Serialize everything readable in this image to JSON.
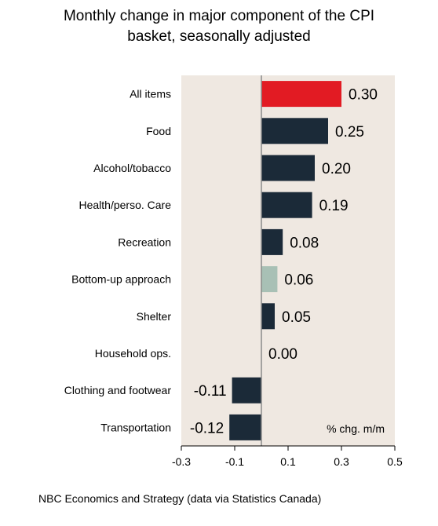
{
  "chart_data": {
    "type": "bar",
    "orientation": "horizontal",
    "title_line1": "Monthly change in major component of the CPI",
    "title_line2": "basket, seasonally adjusted",
    "categories": [
      "All items",
      "Food",
      "Alcohol/tobacco",
      "Health/perso. Care",
      "Recreation",
      "Bottom-up approach",
      "Shelter",
      "Household ops.",
      "Clothing and footwear",
      "Transportation"
    ],
    "values": [
      0.3,
      0.25,
      0.2,
      0.19,
      0.08,
      0.06,
      0.05,
      0.0,
      -0.11,
      -0.12
    ],
    "value_labels": [
      "0.30",
      "0.25",
      "0.20",
      "0.19",
      "0.08",
      "0.06",
      "0.05",
      "0.00",
      "-0.11",
      "-0.12"
    ],
    "bar_colors": [
      "#e21b23",
      "#1b2a38",
      "#1b2a38",
      "#1b2a38",
      "#1b2a38",
      "#a8c0b5",
      "#1b2a38",
      "#1b2a38",
      "#1b2a38",
      "#1b2a38"
    ],
    "xlim": [
      -0.3,
      0.5
    ],
    "xticks": [
      -0.3,
      -0.1,
      0.1,
      0.3,
      0.5
    ],
    "xtick_labels": [
      "-0.3",
      "-0.1",
      "0.1",
      "0.3",
      "0.5"
    ],
    "unit_label": "% chg. m/m",
    "background_color": "#efe8e1",
    "zero_line_color": "#8a8a8a"
  },
  "source": "NBC Economics and Strategy (data via Statistics Canada)"
}
